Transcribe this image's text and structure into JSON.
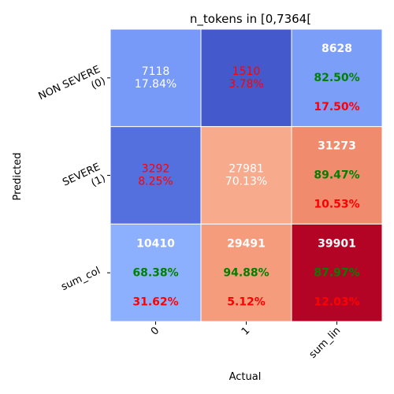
{
  "chart_data": {
    "type": "heatmap",
    "title": "n_tokens in [0,7364[",
    "xlabel": "Actual",
    "ylabel": "Predicted",
    "x_tick_labels": [
      "0",
      "1",
      "sum_lin"
    ],
    "y_tick_labels": [
      [
        "NON SEVERE",
        "(0)"
      ],
      [
        "SEVERE",
        "(1)"
      ],
      [
        "sum_col"
      ]
    ],
    "grid": false,
    "colorbar": false,
    "colors": {
      "lowest": "#3b4cc0",
      "highest": "#b40426",
      "pct_ok": "#008000",
      "pct_err": "#ff0000",
      "value_text": "#ffffff"
    },
    "cells": [
      [
        {
          "count": 7118,
          "pct": "17.84%",
          "bg": "#7799f8",
          "text_color": "#ffffff"
        },
        {
          "count": 1510,
          "pct": "3.78%",
          "bg": "#445acc",
          "text_color": "#ff0000"
        },
        {
          "count": 8628,
          "pct_ok": "82.50%",
          "pct_err": "17.50%",
          "bg": "#7b9ff9",
          "summary": true
        }
      ],
      [
        {
          "count": 3292,
          "pct": "8.25%",
          "bg": "#5470de",
          "text_color": "#ff0000"
        },
        {
          "count": 27981,
          "pct": "70.13%",
          "bg": "#f7aa8c",
          "text_color": "#ffffff"
        },
        {
          "count": 31273,
          "pct_ok": "89.47%",
          "pct_err": "10.53%",
          "bg": "#f08b6e",
          "summary": true
        }
      ],
      [
        {
          "count": 10410,
          "pct_ok": "68.38%",
          "pct_err": "31.62%",
          "bg": "#8db0fe",
          "summary": true
        },
        {
          "count": 29491,
          "pct_ok": "94.88%",
          "pct_err": "5.12%",
          "bg": "#f59c7d",
          "summary": true
        },
        {
          "count": 39901,
          "pct_ok": "87.97%",
          "pct_err": "12.03%",
          "bg": "#b40426",
          "summary": true
        }
      ]
    ]
  }
}
